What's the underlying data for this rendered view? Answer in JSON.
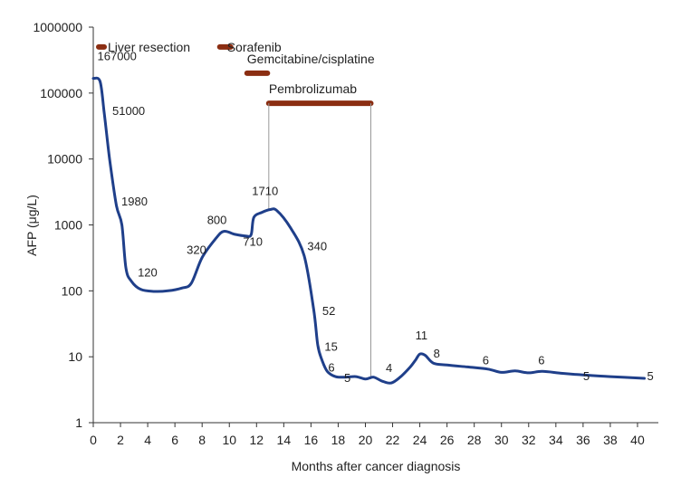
{
  "chart_data": {
    "type": "line",
    "title": "",
    "xlabel": "Months after cancer diagnosis",
    "ylabel": "AFP (μg/L)",
    "xlim": [
      0,
      41
    ],
    "ylim": [
      1,
      1000000
    ],
    "yscale": "log",
    "grid": false,
    "legend": "none",
    "xticks": [
      "0",
      "2",
      "4",
      "6",
      "8",
      "10",
      "12",
      "14",
      "16",
      "18",
      "20",
      "22",
      "24",
      "26",
      "28",
      "30",
      "32",
      "34",
      "36",
      "38",
      "40"
    ],
    "yticks": [
      "1",
      "10",
      "100",
      "1000",
      "10000",
      "100000",
      "1000000"
    ],
    "line_color": "#1f3f8a",
    "treatment_color": "#8b2e12",
    "series": [
      {
        "x": [
          0,
          0.5,
          0.8,
          1.2,
          1.7,
          2.1,
          2.4,
          2.8,
          3.5,
          4.5,
          5.5,
          6.5,
          7.2,
          8.0,
          9.0,
          9.6,
          10.4,
          11.2,
          11.6,
          11.8,
          12.4,
          13.0,
          13.5,
          14.5,
          15.5,
          16.2,
          16.5,
          16.8,
          17.2,
          17.8,
          18.5,
          19.3,
          20.0,
          20.6,
          21.2,
          21.9,
          22.6,
          23.3,
          23.7,
          24.0,
          24.4,
          25.0,
          26.0,
          27.5,
          29.0,
          30.0,
          31.0,
          32.0,
          33.0,
          34.5,
          36.0,
          38.0,
          40.5
        ],
        "y": [
          167000,
          150000,
          51000,
          10000,
          1980,
          1000,
          220,
          140,
          105,
          98,
          100,
          110,
          130,
          320,
          620,
          800,
          720,
          680,
          710,
          1300,
          1550,
          1710,
          1650,
          900,
          340,
          52,
          15,
          9,
          6,
          5,
          4.9,
          5.0,
          4.6,
          4.9,
          4.3,
          4.0,
          5.0,
          7.0,
          9.0,
          11,
          10.5,
          8,
          7.5,
          7,
          6.5,
          5.8,
          6.1,
          5.7,
          6.0,
          5.6,
          5.3,
          5.0,
          4.7
        ]
      }
    ],
    "data_labels": [
      {
        "x": 0.3,
        "y": 167000,
        "text": "167000"
      },
      {
        "x": 1.0,
        "y": 51000,
        "text": "51000"
      },
      {
        "x": 1.8,
        "y": 1980,
        "text": "1980"
      },
      {
        "x": 3.0,
        "y": 120,
        "text": "120"
      },
      {
        "x": 7.0,
        "y": 320,
        "text": "320"
      },
      {
        "x": 8.5,
        "y": 800,
        "text": "800"
      },
      {
        "x": 10.6,
        "y": 710,
        "text": "710"
      },
      {
        "x": 11.0,
        "y": 1710,
        "text": "1710"
      },
      {
        "x": 15.2,
        "y": 340,
        "text": "340"
      },
      {
        "x": 16.3,
        "y": 52,
        "text": "52"
      },
      {
        "x": 16.6,
        "y": 15,
        "text": "15"
      },
      {
        "x": 17.0,
        "y": 6,
        "text": "6"
      },
      {
        "x": 18.3,
        "y": 5,
        "text": "5"
      },
      {
        "x": 21.5,
        "y": 4,
        "text": "4"
      },
      {
        "x": 23.4,
        "y": 11,
        "text": "11"
      },
      {
        "x": 25.0,
        "y": 8,
        "text": "8"
      },
      {
        "x": 28.6,
        "y": 6,
        "text": "6"
      },
      {
        "x": 32.7,
        "y": 6,
        "text": "6"
      },
      {
        "x": 36.0,
        "y": 5,
        "text": "5"
      },
      {
        "x": 40.7,
        "y": 5,
        "text": "5"
      }
    ],
    "treatments": [
      {
        "label": "Liver resection",
        "start": 0.4,
        "end": 0.8,
        "y": 500000
      },
      {
        "label": "Sorafenib",
        "start": 9.3,
        "end": 10.1,
        "y": 500000
      },
      {
        "label": "Gemcitabine/cisplatine",
        "start": 11.3,
        "end": 12.8,
        "y": 200000
      },
      {
        "label": "Pembrolizumab",
        "start": 12.9,
        "end": 20.4,
        "y": 70000
      }
    ]
  }
}
